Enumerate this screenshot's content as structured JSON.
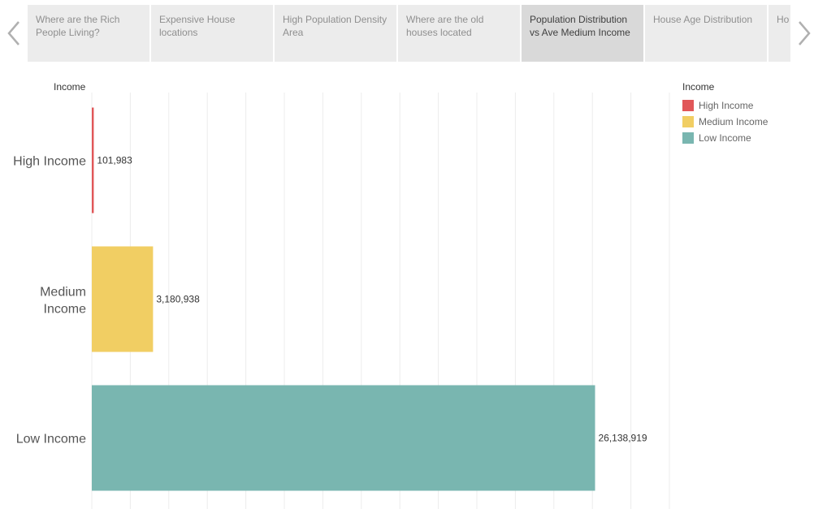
{
  "story_tabs": [
    {
      "label": "Where are the Rich People Living?",
      "active": false
    },
    {
      "label": "Expensive House locations",
      "active": false
    },
    {
      "label": "High Population Density Area",
      "active": false
    },
    {
      "label": "Where are the old houses located",
      "active": false
    },
    {
      "label": "Population Distribution vs Ave Medium Income",
      "active": true
    },
    {
      "label": "House Age Distribution",
      "active": false
    },
    {
      "label": "Ho Dis",
      "active": false
    }
  ],
  "icons": {
    "prev": "chevron-left-icon",
    "next": "chevron-right-icon"
  },
  "chart_data": {
    "type": "bar",
    "orientation": "horizontal",
    "title": "",
    "row_header": "Income",
    "categories": [
      "High Income",
      "Medium Income",
      "Low Income"
    ],
    "values": [
      101983,
      3180938,
      26138919
    ],
    "value_labels": [
      "101,983",
      "3,180,938",
      "26,138,919"
    ],
    "colors": [
      "#e15759",
      "#f1ce63",
      "#79b6b0"
    ],
    "xlim": [
      0,
      30000000
    ],
    "grid": true,
    "legend": {
      "title": "Income",
      "position": "right",
      "items": [
        {
          "label": "High Income",
          "color": "#e15759"
        },
        {
          "label": "Medium Income",
          "color": "#f1ce63"
        },
        {
          "label": "Low Income",
          "color": "#79b6b0"
        }
      ]
    }
  }
}
